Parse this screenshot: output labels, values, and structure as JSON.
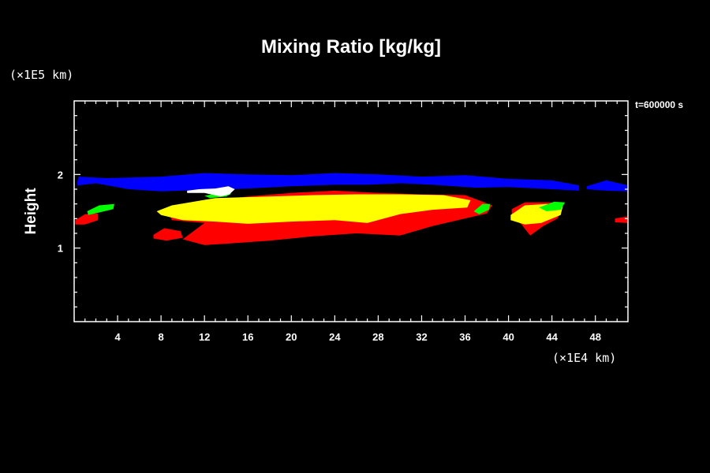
{
  "chart_data": {
    "type": "heatmap",
    "title": "Mixing Ratio [kg/kg]",
    "ylabel": "Height",
    "y_unit_label": "(×1E5 km)",
    "x_unit_label": "(×1E4 km)",
    "time_label": "t=600000 s",
    "xlim": [
      0,
      51
    ],
    "ylim": [
      0,
      3
    ],
    "x_ticks": [
      4,
      8,
      12,
      16,
      20,
      24,
      28,
      32,
      36,
      40,
      44,
      48
    ],
    "y_ticks": [
      1,
      2
    ],
    "x_minor_step": 1,
    "y_minor_step": 0.2,
    "regions": [
      {
        "color": "#0000ff",
        "points": [
          [
            0.3,
            1.9
          ],
          [
            0.4,
            1.97
          ],
          [
            3,
            1.95
          ],
          [
            8,
            1.97
          ],
          [
            12,
            2.02
          ],
          [
            16,
            2.0
          ],
          [
            20,
            1.99
          ],
          [
            24,
            2.02
          ],
          [
            28,
            2.0
          ],
          [
            32,
            1.97
          ],
          [
            36,
            1.99
          ],
          [
            40,
            1.94
          ],
          [
            44,
            1.92
          ],
          [
            46.5,
            1.85
          ],
          [
            46.5,
            1.78
          ],
          [
            44,
            1.8
          ],
          [
            40,
            1.83
          ],
          [
            37,
            1.82
          ],
          [
            35,
            1.84
          ],
          [
            33,
            1.86
          ],
          [
            30,
            1.88
          ],
          [
            27,
            1.86
          ],
          [
            24,
            1.86
          ],
          [
            20,
            1.84
          ],
          [
            16,
            1.81
          ],
          [
            12,
            1.79
          ],
          [
            8,
            1.77
          ],
          [
            5,
            1.8
          ],
          [
            2,
            1.88
          ],
          [
            0.3,
            1.85
          ]
        ]
      },
      {
        "color": "#0000ff",
        "points": [
          [
            47.2,
            1.84
          ],
          [
            49,
            1.92
          ],
          [
            51,
            1.85
          ],
          [
            51,
            1.77
          ],
          [
            49,
            1.78
          ],
          [
            47.2,
            1.8
          ]
        ]
      },
      {
        "color": "#ff0000",
        "points": [
          [
            8.5,
            1.55
          ],
          [
            12,
            1.63
          ],
          [
            16,
            1.7
          ],
          [
            20,
            1.75
          ],
          [
            24,
            1.78
          ],
          [
            28,
            1.75
          ],
          [
            32,
            1.73
          ],
          [
            36,
            1.72
          ],
          [
            38.5,
            1.58
          ],
          [
            38,
            1.47
          ],
          [
            33,
            1.3
          ],
          [
            30,
            1.17
          ],
          [
            26,
            1.2
          ],
          [
            22,
            1.16
          ],
          [
            18,
            1.1
          ],
          [
            14,
            1.06
          ],
          [
            12,
            1.04
          ],
          [
            10,
            1.12
          ],
          [
            12,
            1.34
          ],
          [
            9,
            1.38
          ]
        ]
      },
      {
        "color": "#ff0000",
        "points": [
          [
            7.3,
            1.18
          ],
          [
            8.3,
            1.27
          ],
          [
            9.8,
            1.23
          ],
          [
            10,
            1.14
          ],
          [
            8.5,
            1.1
          ],
          [
            7.3,
            1.13
          ]
        ]
      },
      {
        "color": "#ff0000",
        "points": [
          [
            40.3,
            1.53
          ],
          [
            41.5,
            1.62
          ],
          [
            44,
            1.62
          ],
          [
            45,
            1.55
          ],
          [
            44.5,
            1.4
          ],
          [
            43.2,
            1.3
          ],
          [
            42,
            1.17
          ],
          [
            41.2,
            1.32
          ],
          [
            40.3,
            1.43
          ]
        ]
      },
      {
        "color": "#ff0000",
        "points": [
          [
            0.1,
            1.38
          ],
          [
            1,
            1.46
          ],
          [
            2.2,
            1.47
          ],
          [
            2.2,
            1.38
          ],
          [
            1,
            1.32
          ],
          [
            0.1,
            1.32
          ]
        ]
      },
      {
        "color": "#ff0000",
        "points": [
          [
            49.8,
            1.4
          ],
          [
            51,
            1.43
          ],
          [
            51,
            1.34
          ],
          [
            49.8,
            1.35
          ]
        ]
      },
      {
        "color": "#ffff00",
        "points": [
          [
            7.6,
            1.5
          ],
          [
            9,
            1.58
          ],
          [
            13,
            1.68
          ],
          [
            18,
            1.7
          ],
          [
            22,
            1.72
          ],
          [
            26,
            1.73
          ],
          [
            30,
            1.73
          ],
          [
            34,
            1.72
          ],
          [
            36.5,
            1.65
          ],
          [
            36.2,
            1.55
          ],
          [
            33,
            1.52
          ],
          [
            30,
            1.46
          ],
          [
            27,
            1.34
          ],
          [
            24,
            1.38
          ],
          [
            20,
            1.36
          ],
          [
            16,
            1.33
          ],
          [
            13,
            1.36
          ],
          [
            10,
            1.38
          ],
          [
            8,
            1.45
          ]
        ]
      },
      {
        "color": "#ffff00",
        "points": [
          [
            40.2,
            1.45
          ],
          [
            41.5,
            1.58
          ],
          [
            43.5,
            1.6
          ],
          [
            45,
            1.57
          ],
          [
            44.8,
            1.45
          ],
          [
            43,
            1.34
          ],
          [
            41.5,
            1.32
          ],
          [
            40.2,
            1.38
          ]
        ]
      },
      {
        "color": "#00ff00",
        "points": [
          [
            1.2,
            1.5
          ],
          [
            2.3,
            1.58
          ],
          [
            3.7,
            1.6
          ],
          [
            3.6,
            1.53
          ],
          [
            2.5,
            1.49
          ],
          [
            1.3,
            1.45
          ]
        ]
      },
      {
        "color": "#00ff00",
        "points": [
          [
            36.8,
            1.5
          ],
          [
            37.6,
            1.6
          ],
          [
            38.3,
            1.6
          ],
          [
            38.2,
            1.52
          ],
          [
            37.3,
            1.46
          ]
        ]
      },
      {
        "color": "#00ff00",
        "points": [
          [
            42.8,
            1.55
          ],
          [
            44.2,
            1.63
          ],
          [
            45.2,
            1.62
          ],
          [
            44.8,
            1.52
          ],
          [
            43.5,
            1.5
          ]
        ]
      },
      {
        "color": "#00ff00",
        "points": [
          [
            12,
            1.71
          ],
          [
            13,
            1.74
          ],
          [
            14.5,
            1.74
          ],
          [
            14,
            1.7
          ],
          [
            12.5,
            1.68
          ]
        ]
      },
      {
        "color": "#ffffff",
        "points": [
          [
            10.4,
            1.78
          ],
          [
            11.5,
            1.8
          ],
          [
            13,
            1.81
          ],
          [
            14.2,
            1.84
          ],
          [
            14.8,
            1.8
          ],
          [
            14.3,
            1.73
          ],
          [
            13.5,
            1.7
          ],
          [
            12,
            1.75
          ],
          [
            10.4,
            1.75
          ]
        ]
      }
    ]
  }
}
